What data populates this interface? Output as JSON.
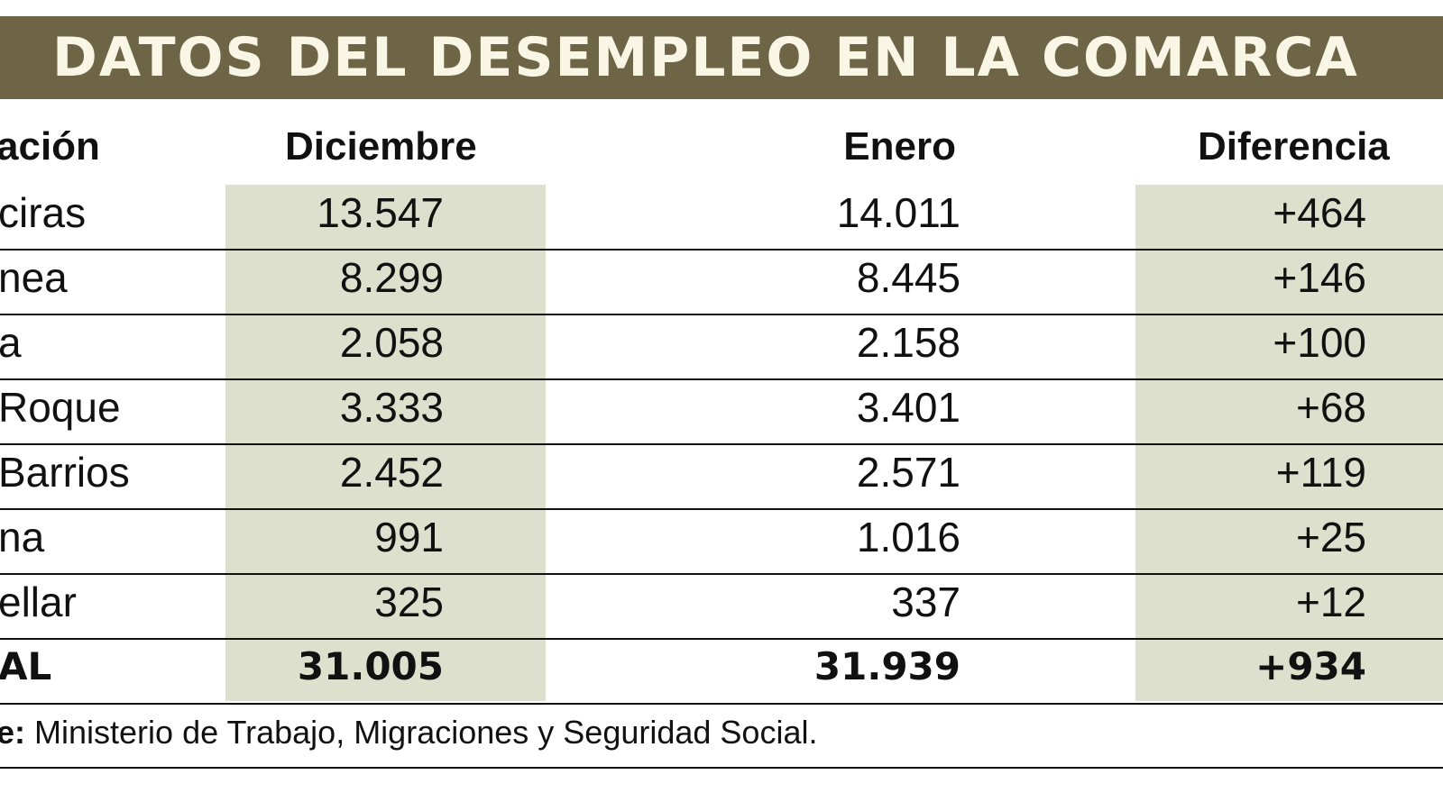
{
  "chart_data": {
    "type": "table",
    "title": "DATOS DEL DESEMPLEO EN LA COMARCA",
    "columns": [
      "ación",
      "Diciembre",
      "Enero",
      "Diferencia"
    ],
    "rows": [
      {
        "name": "ciras",
        "diciembre": "13.547",
        "enero": "14.011",
        "diferencia": "+464"
      },
      {
        "name": "nea",
        "diciembre": "8.299",
        "enero": "8.445",
        "diferencia": "+146"
      },
      {
        "name": "a",
        "diciembre": "2.058",
        "enero": "2.158",
        "diferencia": "+100"
      },
      {
        "name": "Roque",
        "diciembre": "3.333",
        "enero": "3.401",
        "diferencia": "+68"
      },
      {
        "name": "Barrios",
        "diciembre": "2.452",
        "enero": "2.571",
        "diferencia": "+119"
      },
      {
        "name": "na",
        "diciembre": "991",
        "enero": "1.016",
        "diferencia": "+25"
      },
      {
        "name": "ellar",
        "diciembre": "325",
        "enero": "337",
        "diferencia": "+12"
      }
    ],
    "total": {
      "name": "AL",
      "diciembre": "31.005",
      "enero": "31.939",
      "diferencia": "+934"
    },
    "source_label": "e:",
    "source_text": "Ministerio de Trabajo, Migraciones y Seguridad Social.",
    "colors": {
      "title_bar": "#6e6446",
      "title_text": "#faf6e6",
      "shaded_column": "#dde0cc"
    }
  }
}
